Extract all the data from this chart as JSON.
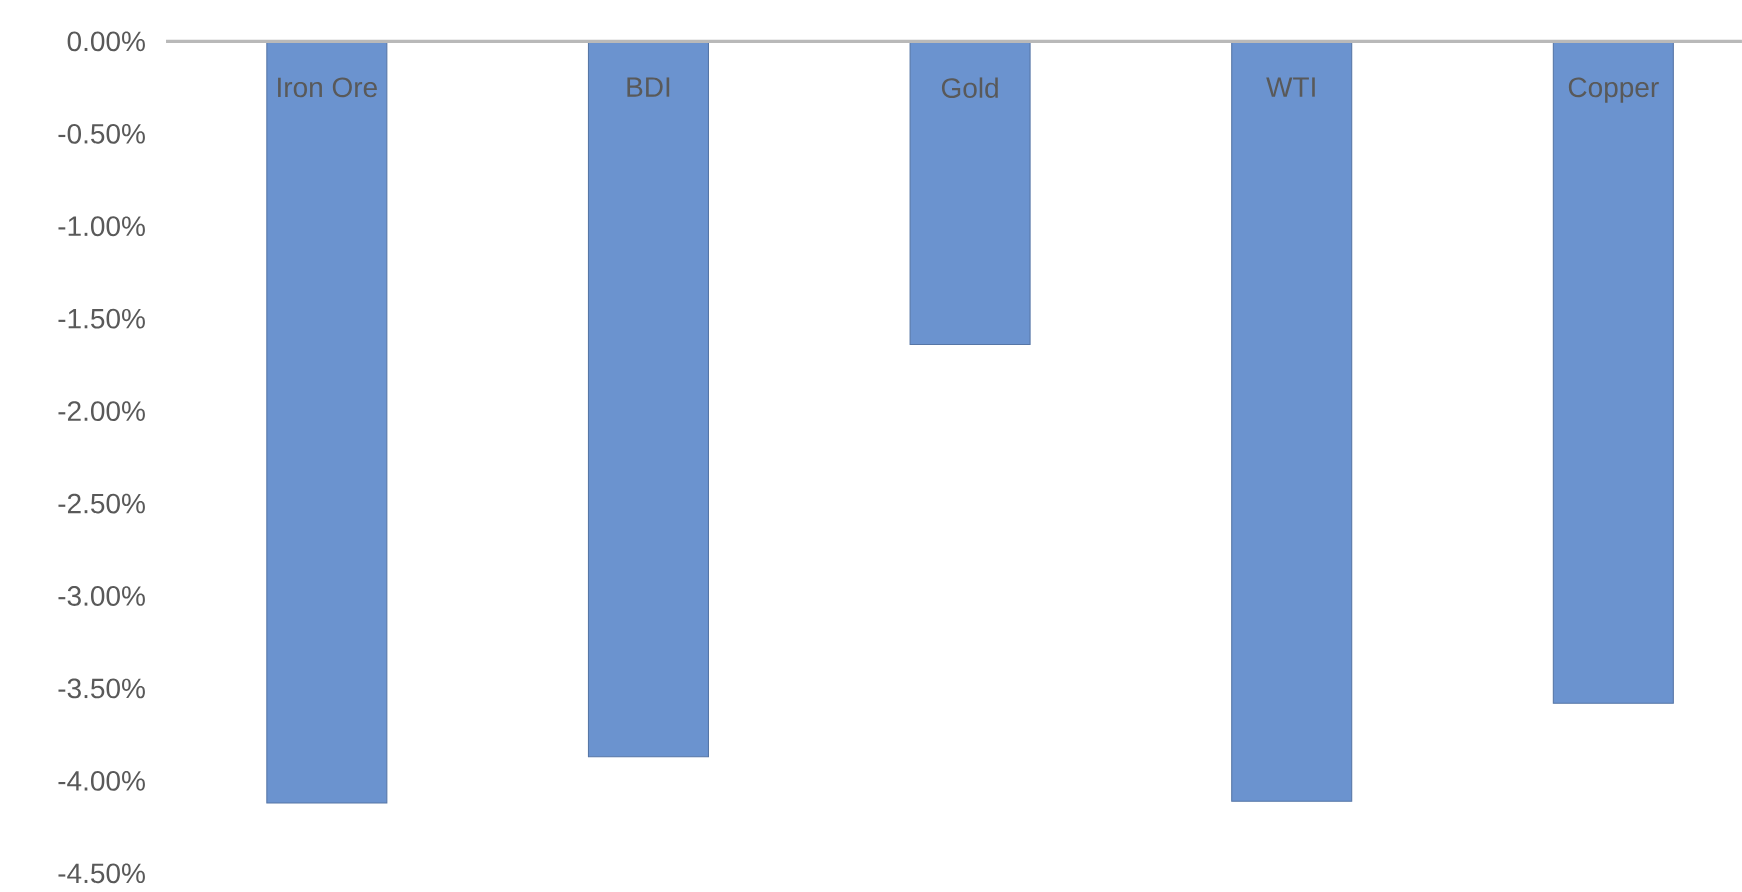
{
  "chart_data": {
    "type": "bar",
    "categories": [
      "Iron Ore",
      "BDI",
      "Gold",
      "WTI",
      "Copper"
    ],
    "values": [
      -4.12,
      -3.87,
      -1.64,
      -4.11,
      -3.58
    ],
    "color": "#6b93cf",
    "ylim": [
      -4.5,
      0
    ],
    "yticks": [
      {
        "value": 0,
        "label": "0.00%"
      },
      {
        "value": -0.5,
        "label": "-0.50%"
      },
      {
        "value": -1,
        "label": "-1.00%"
      },
      {
        "value": -1.5,
        "label": "-1.50%"
      },
      {
        "value": -2,
        "label": "-2.00%"
      },
      {
        "value": -2.5,
        "label": "-2.50%"
      },
      {
        "value": -3,
        "label": "-3.00%"
      },
      {
        "value": -3.5,
        "label": "-3.50%"
      },
      {
        "value": -4,
        "label": "-4.00%"
      },
      {
        "value": -4.5,
        "label": "-4.50%"
      }
    ]
  }
}
